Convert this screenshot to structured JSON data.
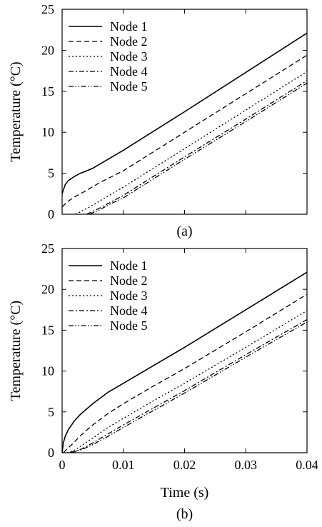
{
  "chart_data": [
    {
      "type": "line",
      "panel_label": "(a)",
      "ylabel": "Temperature (°C)",
      "xlabel": "",
      "xlim": [
        0,
        0.04
      ],
      "ylim": [
        0,
        25
      ],
      "xticks": [
        0,
        0.01,
        0.02,
        0.03,
        0.04
      ],
      "yticks": [
        0,
        5,
        10,
        15,
        20,
        25
      ],
      "show_xtick_labels": false,
      "grid": false,
      "legend": "top-left",
      "series": [
        {
          "name": "Node 1",
          "dash": "solid",
          "points": [
            [
              0,
              2.5
            ],
            [
              0.0005,
              3.6
            ],
            [
              0.001,
              4.1
            ],
            [
              0.002,
              4.6
            ],
            [
              0.003,
              5.0
            ],
            [
              0.005,
              5.6
            ],
            [
              0.01,
              7.8
            ],
            [
              0.02,
              12.5
            ],
            [
              0.03,
              17.3
            ],
            [
              0.04,
              22.1
            ]
          ]
        },
        {
          "name": "Node 2",
          "dash": "dash",
          "points": [
            [
              0,
              0.9
            ],
            [
              0.001,
              1.6
            ],
            [
              0.002,
              2.1
            ],
            [
              0.004,
              2.9
            ],
            [
              0.006,
              3.8
            ],
            [
              0.01,
              5.3
            ],
            [
              0.02,
              10.0
            ],
            [
              0.03,
              14.7
            ],
            [
              0.04,
              19.4
            ]
          ]
        },
        {
          "name": "Node 3",
          "dash": "dot",
          "points": [
            [
              0.0022,
              0
            ],
            [
              0.003,
              0.3
            ],
            [
              0.005,
              1.1
            ],
            [
              0.007,
              2.0
            ],
            [
              0.01,
              3.3
            ],
            [
              0.02,
              8.0
            ],
            [
              0.03,
              12.7
            ],
            [
              0.04,
              17.4
            ]
          ]
        },
        {
          "name": "Node 4",
          "dash": "dashdot",
          "points": [
            [
              0.004,
              0
            ],
            [
              0.006,
              0.7
            ],
            [
              0.008,
              1.5
            ],
            [
              0.01,
              2.3
            ],
            [
              0.02,
              7.0
            ],
            [
              0.03,
              11.6
            ],
            [
              0.04,
              16.3
            ]
          ]
        },
        {
          "name": "Node 5",
          "dash": "dashdotdot",
          "points": [
            [
              0.0045,
              0
            ],
            [
              0.006,
              0.5
            ],
            [
              0.008,
              1.3
            ],
            [
              0.01,
              2.0
            ],
            [
              0.02,
              6.7
            ],
            [
              0.03,
              11.3
            ],
            [
              0.04,
              16.0
            ]
          ]
        }
      ]
    },
    {
      "type": "line",
      "panel_label": "(b)",
      "ylabel": "Temperature (°C)",
      "xlabel": "Time (s)",
      "xlim": [
        0,
        0.04
      ],
      "ylim": [
        0,
        25
      ],
      "xticks": [
        0,
        0.01,
        0.02,
        0.03,
        0.04
      ],
      "yticks": [
        0,
        5,
        10,
        15,
        20,
        25
      ],
      "show_xtick_labels": true,
      "grid": false,
      "legend": "top-left",
      "series": [
        {
          "name": "Node 1",
          "dash": "solid",
          "points": [
            [
              0,
              0
            ],
            [
              0.0002,
              1.2
            ],
            [
              0.0005,
              2.0
            ],
            [
              0.001,
              2.8
            ],
            [
              0.002,
              3.9
            ],
            [
              0.003,
              4.7
            ],
            [
              0.005,
              6.0
            ],
            [
              0.0075,
              7.4
            ],
            [
              0.01,
              8.5
            ],
            [
              0.015,
              10.7
            ],
            [
              0.02,
              12.9
            ],
            [
              0.03,
              17.5
            ],
            [
              0.04,
              22.1
            ]
          ]
        },
        {
          "name": "Node 2",
          "dash": "dash",
          "points": [
            [
              0.0002,
              0
            ],
            [
              0.001,
              0.6
            ],
            [
              0.002,
              1.3
            ],
            [
              0.003,
              2.1
            ],
            [
              0.005,
              3.4
            ],
            [
              0.0075,
              4.8
            ],
            [
              0.01,
              6.0
            ],
            [
              0.015,
              8.2
            ],
            [
              0.02,
              10.3
            ],
            [
              0.03,
              14.8
            ],
            [
              0.04,
              19.4
            ]
          ]
        },
        {
          "name": "Node 3",
          "dash": "dot",
          "points": [
            [
              0.0008,
              0
            ],
            [
              0.002,
              0.3
            ],
            [
              0.003,
              0.8
            ],
            [
              0.005,
              1.8
            ],
            [
              0.0075,
              3.1
            ],
            [
              0.01,
              4.2
            ],
            [
              0.015,
              6.4
            ],
            [
              0.02,
              8.5
            ],
            [
              0.03,
              12.9
            ],
            [
              0.04,
              17.4
            ]
          ]
        },
        {
          "name": "Node 4",
          "dash": "dashdot",
          "points": [
            [
              0.0012,
              0
            ],
            [
              0.003,
              0.4
            ],
            [
              0.005,
              1.2
            ],
            [
              0.0075,
              2.3
            ],
            [
              0.01,
              3.4
            ],
            [
              0.015,
              5.5
            ],
            [
              0.02,
              7.6
            ],
            [
              0.03,
              12.0
            ],
            [
              0.04,
              16.3
            ]
          ]
        },
        {
          "name": "Node 5",
          "dash": "dashdotdot",
          "points": [
            [
              0.0015,
              0
            ],
            [
              0.003,
              0.3
            ],
            [
              0.005,
              1.0
            ],
            [
              0.0075,
              2.0
            ],
            [
              0.01,
              3.1
            ],
            [
              0.015,
              5.2
            ],
            [
              0.02,
              7.3
            ],
            [
              0.03,
              11.7
            ],
            [
              0.04,
              16.0
            ]
          ]
        }
      ]
    }
  ]
}
